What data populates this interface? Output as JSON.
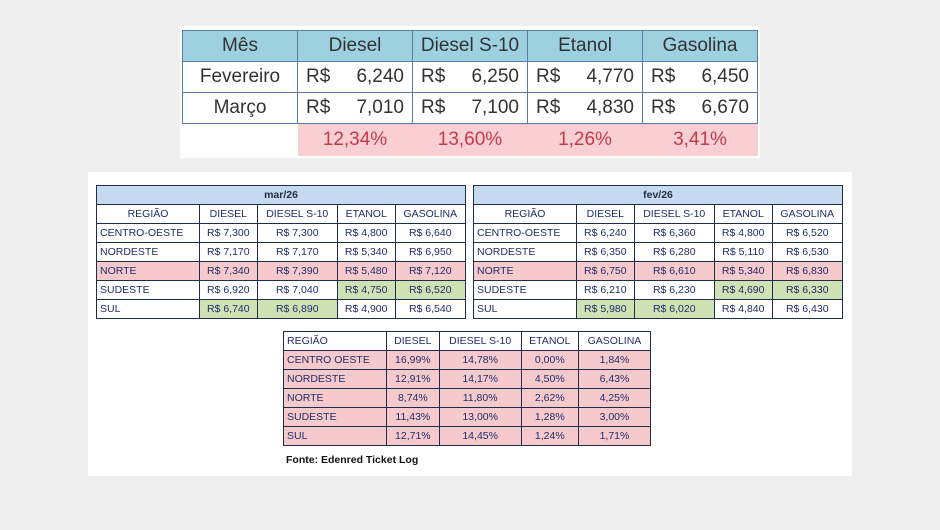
{
  "top_table": {
    "headers": [
      "Mês",
      "Diesel",
      "Diesel S-10",
      "Etanol",
      "Gasolina"
    ],
    "currency": "R$",
    "rows": [
      {
        "label": "Fevereiro",
        "values": [
          "6,240",
          "6,250",
          "4,770",
          "6,450"
        ]
      },
      {
        "label": "Março",
        "values": [
          "7,010",
          "7,100",
          "4,830",
          "6,670"
        ]
      }
    ],
    "percent_row": [
      "12,34%",
      "13,60%",
      "1,26%",
      "3,41%"
    ]
  },
  "mar_table": {
    "title": "mar/26",
    "headers": [
      "REGIÃO",
      "DIESEL",
      "DIESEL S-10",
      "ETANOL",
      "GASOLINA"
    ],
    "rows": [
      {
        "region": "CENTRO-OESTE",
        "values": [
          "R$ 7,300",
          "R$ 7,300",
          "R$ 4,800",
          "R$ 6,640"
        ],
        "highlights": [
          "",
          "",
          "",
          ""
        ]
      },
      {
        "region": "NORDESTE",
        "values": [
          "R$ 7,170",
          "R$ 7,170",
          "R$ 5,340",
          "R$ 6,950"
        ],
        "highlights": [
          "",
          "",
          "",
          ""
        ]
      },
      {
        "region": "NORTE",
        "values": [
          "R$ 7,340",
          "R$ 7,390",
          "R$ 5,480",
          "R$ 7,120"
        ],
        "highlights": [
          "red",
          "red",
          "red",
          "red"
        ],
        "region_highlight": "red"
      },
      {
        "region": "SUDESTE",
        "values": [
          "R$ 6,920",
          "R$ 7,040",
          "R$ 4,750",
          "R$ 6,520"
        ],
        "highlights": [
          "",
          "",
          "green",
          "green"
        ]
      },
      {
        "region": "SUL",
        "values": [
          "R$ 6,740",
          "R$ 6,890",
          "R$ 4,900",
          "R$ 6,540"
        ],
        "highlights": [
          "green",
          "green",
          "",
          ""
        ]
      }
    ]
  },
  "fev_table": {
    "title": "fev/26",
    "headers": [
      "REGIÃO",
      "DIESEL",
      "DIESEL S-10",
      "ETANOL",
      "GASOLINA"
    ],
    "rows": [
      {
        "region": "CENTRO-OESTE",
        "values": [
          "R$ 6,240",
          "R$ 6,360",
          "R$ 4,800",
          "R$ 6,520"
        ],
        "highlights": [
          "",
          "",
          "",
          ""
        ]
      },
      {
        "region": "NORDESTE",
        "values": [
          "R$ 6,350",
          "R$ 6,280",
          "R$ 5,110",
          "R$ 6,530"
        ],
        "highlights": [
          "",
          "",
          "",
          ""
        ]
      },
      {
        "region": "NORTE",
        "values": [
          "R$ 6,750",
          "R$ 6,610",
          "R$ 5,340",
          "R$ 6,830"
        ],
        "highlights": [
          "red",
          "red",
          "red",
          "red"
        ],
        "region_highlight": "red"
      },
      {
        "region": "SUDESTE",
        "values": [
          "R$ 6,210",
          "R$ 6,230",
          "R$ 4,690",
          "R$ 6,330"
        ],
        "highlights": [
          "",
          "",
          "green",
          "green"
        ]
      },
      {
        "region": "SUL",
        "values": [
          "R$ 5,980",
          "R$ 6,020",
          "R$ 4,840",
          "R$ 6,430"
        ],
        "highlights": [
          "green",
          "green",
          "",
          ""
        ]
      }
    ]
  },
  "diff_table": {
    "headers": [
      "REGIÃO",
      "DIESEL",
      "DIESEL S-10",
      "ETANOL",
      "GASOLINA"
    ],
    "rows": [
      {
        "region": "CENTRO OESTE",
        "values": [
          "16,99%",
          "14,78%",
          "0,00%",
          "1,84%"
        ]
      },
      {
        "region": "NORDESTE",
        "values": [
          "12,91%",
          "14,17%",
          "4,50%",
          "6,43%"
        ]
      },
      {
        "region": "NORTE",
        "values": [
          "8,74%",
          "11,80%",
          "2,62%",
          "4,25%"
        ]
      },
      {
        "region": "SUDESTE",
        "values": [
          "11,43%",
          "13,00%",
          "1,28%",
          "3,00%"
        ]
      },
      {
        "region": "SUL",
        "values": [
          "12,71%",
          "14,45%",
          "1,24%",
          "1,71%"
        ]
      }
    ]
  },
  "source": "Fonte: Edenred Ticket Log",
  "colors": {
    "top_header": "#9dd1e0",
    "percent_bg": "#f9cfd4",
    "percent_text": "#c23b4a",
    "title_bg": "#c5d9ef",
    "red_highlight": "#f6c9cc",
    "green_highlight": "#cfe2b4"
  }
}
